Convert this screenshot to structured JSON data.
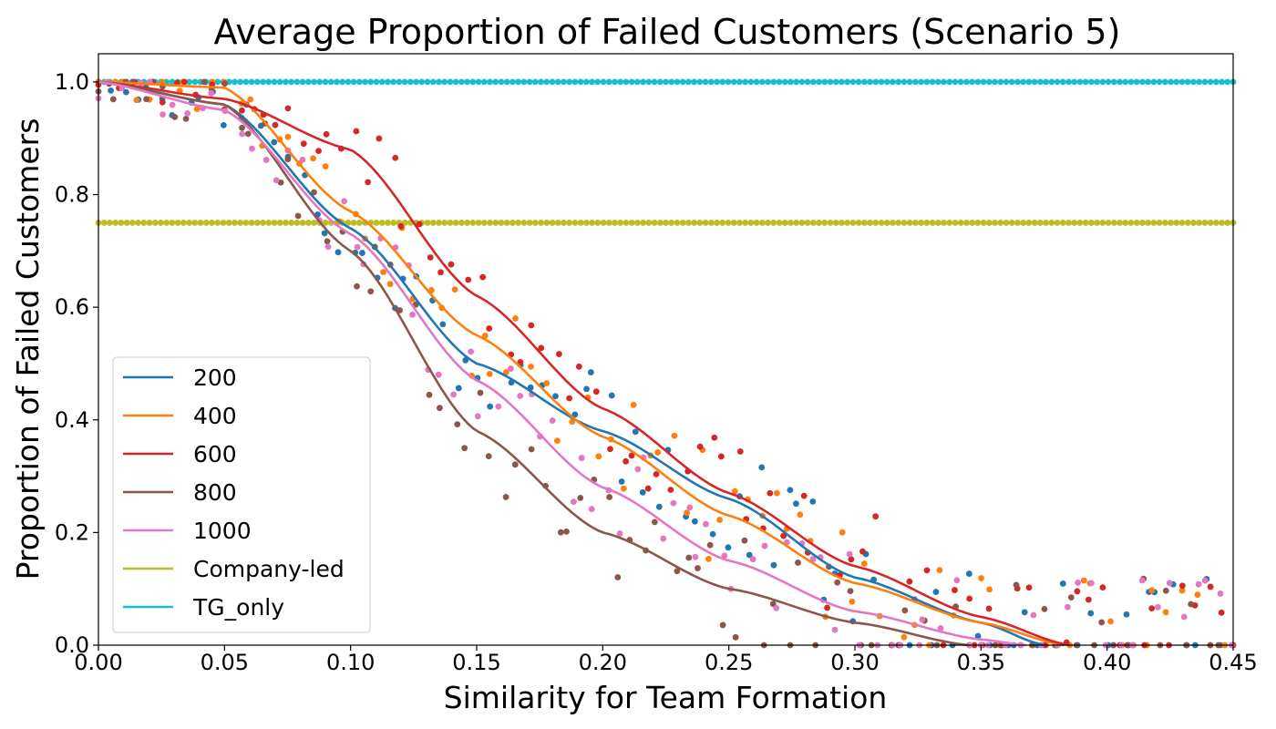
{
  "chart_data": {
    "type": "scatter",
    "title": "Average Proportion of Failed Customers (Scenario 5)",
    "xlabel": "Similarity for Team Formation",
    "ylabel": "Proportion of Failed Customers",
    "xlim": [
      0.0,
      0.45
    ],
    "ylim": [
      0.0,
      1.05
    ],
    "xticks": [
      "0.00",
      "0.05",
      "0.10",
      "0.15",
      "0.20",
      "0.25",
      "0.30",
      "0.35",
      "0.40",
      "0.45"
    ],
    "yticks": [
      "0.0",
      "0.2",
      "0.4",
      "0.6",
      "0.8",
      "1.0"
    ],
    "legend_position": "lower-left",
    "series": [
      {
        "name": "200",
        "color": "#1f77b4",
        "fit": [
          [
            0.0,
            1.0
          ],
          [
            0.05,
            0.96
          ],
          [
            0.1,
            0.74
          ],
          [
            0.15,
            0.5
          ],
          [
            0.2,
            0.38
          ],
          [
            0.25,
            0.26
          ],
          [
            0.3,
            0.12
          ],
          [
            0.35,
            0.04
          ],
          [
            0.375,
            0.0
          ]
        ]
      },
      {
        "name": "400",
        "color": "#ff7f0e",
        "fit": [
          [
            0.0,
            1.0
          ],
          [
            0.05,
            0.99
          ],
          [
            0.1,
            0.77
          ],
          [
            0.15,
            0.55
          ],
          [
            0.2,
            0.37
          ],
          [
            0.25,
            0.23
          ],
          [
            0.3,
            0.11
          ],
          [
            0.35,
            0.04
          ],
          [
            0.383,
            0.0
          ]
        ]
      },
      {
        "name": "600",
        "color": "#d62728",
        "fit": [
          [
            0.0,
            1.0
          ],
          [
            0.05,
            0.97
          ],
          [
            0.1,
            0.88
          ],
          [
            0.15,
            0.62
          ],
          [
            0.2,
            0.42
          ],
          [
            0.25,
            0.27
          ],
          [
            0.3,
            0.14
          ],
          [
            0.35,
            0.05
          ],
          [
            0.385,
            0.0
          ]
        ]
      },
      {
        "name": "800",
        "color": "#8c564b",
        "fit": [
          [
            0.0,
            1.0
          ],
          [
            0.05,
            0.96
          ],
          [
            0.1,
            0.7
          ],
          [
            0.15,
            0.38
          ],
          [
            0.2,
            0.2
          ],
          [
            0.25,
            0.1
          ],
          [
            0.3,
            0.04
          ],
          [
            0.345,
            0.0
          ]
        ]
      },
      {
        "name": "1000",
        "color": "#e377c2",
        "fit": [
          [
            0.0,
            1.0
          ],
          [
            0.05,
            0.95
          ],
          [
            0.1,
            0.73
          ],
          [
            0.15,
            0.47
          ],
          [
            0.2,
            0.28
          ],
          [
            0.25,
            0.15
          ],
          [
            0.3,
            0.06
          ],
          [
            0.35,
            0.01
          ],
          [
            0.368,
            0.0
          ]
        ]
      },
      {
        "name": "Company-led",
        "color": "#bcbd22",
        "constant": 0.75
      },
      {
        "name": "TG_only",
        "color": "#17becf",
        "constant": 1.0
      }
    ]
  }
}
